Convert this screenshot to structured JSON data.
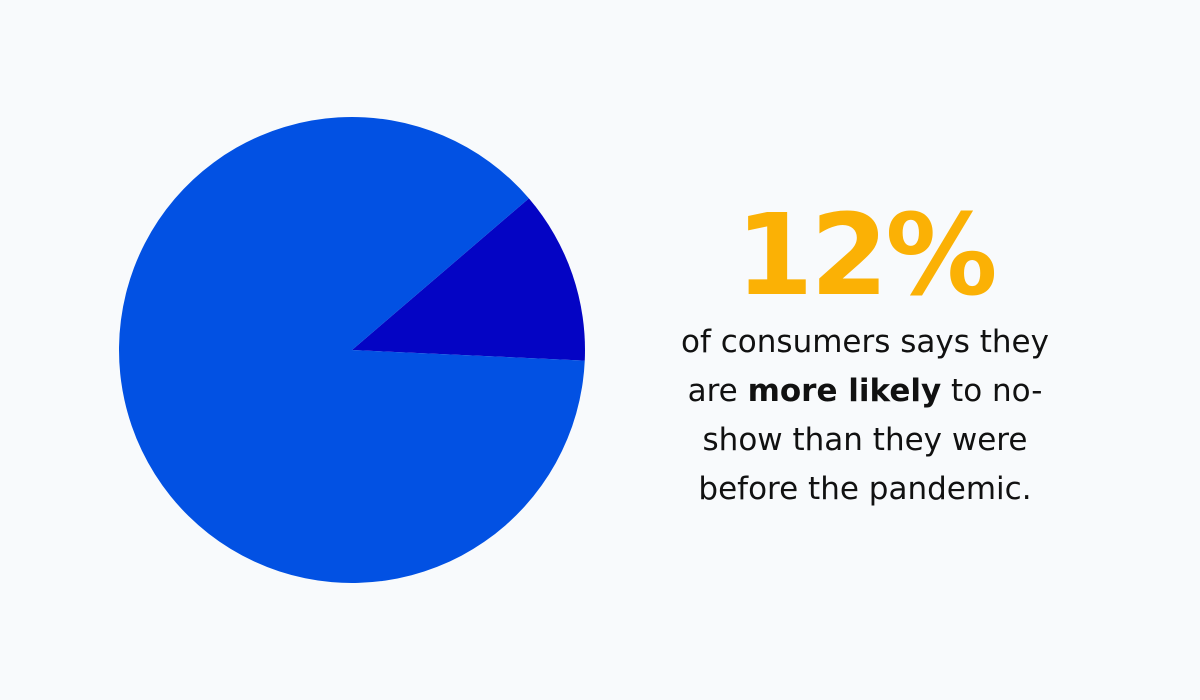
{
  "colors": {
    "background": "#f8fafc",
    "slice_main": "#0251e3",
    "slice_highlight": "#0404c4",
    "accent": "#fbb105",
    "text": "#111111"
  },
  "chart_data": {
    "type": "pie",
    "slices": [
      {
        "value": 88,
        "color": "#0251e3"
      },
      {
        "value": 12,
        "color": "#0404c4"
      }
    ],
    "start_angle_deg": -40.6
  },
  "stat": {
    "value": "12%",
    "caption_line1": "of consumers says they",
    "caption_line2_pre": "are ",
    "caption_line2_bold": "more likely",
    "caption_line2_post": " to no-",
    "caption_line3": "show than they were",
    "caption_line4": "before the pandemic."
  }
}
